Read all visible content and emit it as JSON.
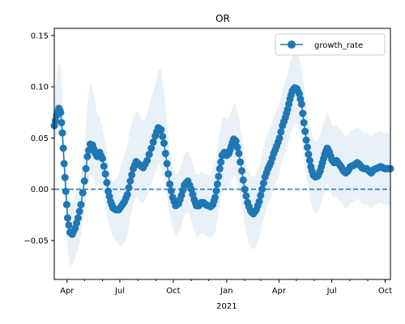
{
  "chart_data": {
    "type": "line",
    "title": "OR",
    "xlabel": "",
    "ylabel": "",
    "x_start": "2020-03-10",
    "x_end": "2021-10-10",
    "ylim": [
      -0.088,
      0.157
    ],
    "yticks": [
      -0.05,
      0.0,
      0.05,
      0.1,
      0.15
    ],
    "ytick_labels": [
      "−0.05",
      "0.00",
      "0.05",
      "0.10",
      "0.15"
    ],
    "xticks": [
      {
        "date": "2020-04-01",
        "label": "Apr",
        "sublabel": ""
      },
      {
        "date": "2020-07-01",
        "label": "Jul",
        "sublabel": ""
      },
      {
        "date": "2020-10-01",
        "label": "Oct",
        "sublabel": ""
      },
      {
        "date": "2021-01-01",
        "label": "Jan",
        "sublabel": "2021"
      },
      {
        "date": "2021-04-01",
        "label": "Apr",
        "sublabel": ""
      },
      {
        "date": "2021-07-01",
        "label": "Jul",
        "sublabel": ""
      },
      {
        "date": "2021-10-01",
        "label": "Oct",
        "sublabel": ""
      }
    ],
    "minor_ticks": [
      "2020-05-01",
      "2020-06-01",
      "2020-08-01",
      "2020-09-01",
      "2020-11-01",
      "2020-12-01",
      "2021-02-01",
      "2021-03-01",
      "2021-05-01",
      "2021-06-01",
      "2021-08-01",
      "2021-09-01"
    ],
    "series": [
      {
        "name": "growth_rate",
        "color": "#1f77b4",
        "marker": "circle",
        "x": [
          "2020-03-10",
          "2020-03-14",
          "2020-03-18",
          "2020-03-21",
          "2020-03-24",
          "2020-03-27",
          "2020-03-30",
          "2020-04-02",
          "2020-04-06",
          "2020-04-10",
          "2020-04-15",
          "2020-04-20",
          "2020-04-25",
          "2020-05-01",
          "2020-05-06",
          "2020-05-11",
          "2020-05-15",
          "2020-05-19",
          "2020-05-23",
          "2020-05-27",
          "2020-06-01",
          "2020-06-06",
          "2020-06-11",
          "2020-06-15",
          "2020-06-19",
          "2020-06-24",
          "2020-06-29",
          "2020-07-04",
          "2020-07-09",
          "2020-07-14",
          "2020-07-19",
          "2020-07-24",
          "2020-07-29",
          "2020-08-03",
          "2020-08-10",
          "2020-08-17",
          "2020-08-24",
          "2020-08-31",
          "2020-09-05",
          "2020-09-10",
          "2020-09-15",
          "2020-09-20",
          "2020-09-25",
          "2020-09-30",
          "2020-10-05",
          "2020-10-10",
          "2020-10-15",
          "2020-10-20",
          "2020-10-26",
          "2020-11-01",
          "2020-11-06",
          "2020-11-10",
          "2020-11-14",
          "2020-11-18",
          "2020-11-22",
          "2020-11-26",
          "2020-11-30",
          "2020-12-04",
          "2020-12-08",
          "2020-12-12",
          "2020-12-16",
          "2020-12-20",
          "2020-12-24",
          "2020-12-28",
          "2021-01-01",
          "2021-01-05",
          "2021-01-09",
          "2021-01-13",
          "2021-01-17",
          "2021-01-22",
          "2021-01-27",
          "2021-02-01",
          "2021-02-06",
          "2021-02-11",
          "2021-02-16",
          "2021-02-21",
          "2021-02-26",
          "2021-03-03",
          "2021-03-08",
          "2021-03-13",
          "2021-03-18",
          "2021-03-23",
          "2021-03-28",
          "2021-04-02",
          "2021-04-07",
          "2021-04-12",
          "2021-04-16",
          "2021-04-20",
          "2021-04-24",
          "2021-04-28",
          "2021-05-02",
          "2021-05-06",
          "2021-05-10",
          "2021-05-14",
          "2021-05-18",
          "2021-05-22",
          "2021-05-26",
          "2021-05-30",
          "2021-06-03",
          "2021-06-07",
          "2021-06-11",
          "2021-06-15",
          "2021-06-19",
          "2021-06-23",
          "2021-06-27",
          "2021-07-01",
          "2021-07-05",
          "2021-07-09",
          "2021-07-13",
          "2021-07-17",
          "2021-07-21",
          "2021-07-25",
          "2021-07-29",
          "2021-08-02",
          "2021-08-06",
          "2021-08-10",
          "2021-08-14",
          "2021-08-18",
          "2021-08-22",
          "2021-08-26",
          "2021-08-30",
          "2021-09-03",
          "2021-09-07",
          "2021-09-11",
          "2021-09-15",
          "2021-09-19",
          "2021-09-23",
          "2021-09-27",
          "2021-10-01",
          "2021-10-05",
          "2021-10-10"
        ],
        "y": [
          0.062,
          0.072,
          0.079,
          0.075,
          0.055,
          0.025,
          -0.002,
          -0.028,
          -0.042,
          -0.044,
          -0.038,
          -0.028,
          -0.015,
          0.008,
          0.032,
          0.044,
          0.043,
          0.036,
          0.032,
          0.036,
          0.03,
          0.015,
          -0.002,
          -0.012,
          -0.018,
          -0.02,
          -0.02,
          -0.016,
          -0.012,
          -0.005,
          0.008,
          0.02,
          0.027,
          0.024,
          0.021,
          0.028,
          0.04,
          0.052,
          0.06,
          0.058,
          0.045,
          0.025,
          0.005,
          -0.008,
          -0.016,
          -0.014,
          -0.006,
          0.004,
          0.008,
          0.0,
          -0.01,
          -0.016,
          -0.016,
          -0.013,
          -0.013,
          -0.015,
          -0.016,
          -0.017,
          -0.015,
          -0.008,
          0.005,
          0.02,
          0.033,
          0.036,
          0.033,
          0.035,
          0.042,
          0.049,
          0.047,
          0.035,
          0.018,
          0.0,
          -0.013,
          -0.021,
          -0.024,
          -0.02,
          -0.012,
          0.0,
          0.012,
          0.02,
          0.026,
          0.035,
          0.042,
          0.05,
          0.062,
          0.07,
          0.078,
          0.088,
          0.096,
          0.099,
          0.098,
          0.093,
          0.083,
          0.065,
          0.048,
          0.034,
          0.022,
          0.014,
          0.012,
          0.013,
          0.018,
          0.026,
          0.034,
          0.04,
          0.036,
          0.029,
          0.026,
          0.028,
          0.025,
          0.022,
          0.018,
          0.016,
          0.018,
          0.022,
          0.023,
          0.024,
          0.026,
          0.024,
          0.021,
          0.02,
          0.02,
          0.018,
          0.016,
          0.019,
          0.02,
          0.021,
          0.022,
          0.021,
          0.02,
          0.02,
          0.02
        ]
      }
    ],
    "band": {
      "color": "#1f77b4",
      "opacity": 0.1,
      "upper_offsets": [
        0.02,
        0.04,
        0.045,
        0.045,
        0.035,
        0.025,
        0.025,
        0.03,
        0.03,
        0.03,
        0.03,
        0.03,
        0.03,
        0.035,
        0.05,
        0.06,
        0.055,
        0.05,
        0.04,
        0.035,
        0.03,
        0.03,
        0.03,
        0.025,
        0.025,
        0.03,
        0.035,
        0.04,
        0.045,
        0.05,
        0.05,
        0.05,
        0.05,
        0.05,
        0.045,
        0.045,
        0.05,
        0.05,
        0.055,
        0.06,
        0.05,
        0.04,
        0.035,
        0.03,
        0.03,
        0.03,
        0.03,
        0.03,
        0.03,
        0.03,
        0.03,
        0.03,
        0.03,
        0.03,
        0.03,
        0.03,
        0.03,
        0.03,
        0.035,
        0.035,
        0.035,
        0.035,
        0.035,
        0.035,
        0.035,
        0.035,
        0.035,
        0.035,
        0.035,
        0.035,
        0.035,
        0.035,
        0.035,
        0.035,
        0.035,
        0.035,
        0.035,
        0.035,
        0.035,
        0.035,
        0.035,
        0.035,
        0.035,
        0.035,
        0.035,
        0.035,
        0.035,
        0.035,
        0.035,
        0.035,
        0.035,
        0.035,
        0.035,
        0.035,
        0.035,
        0.035,
        0.035,
        0.035,
        0.035,
        0.035,
        0.035,
        0.035,
        0.035,
        0.035,
        0.035,
        0.035,
        0.035,
        0.035,
        0.035,
        0.035,
        0.035,
        0.035,
        0.035,
        0.035,
        0.035,
        0.035,
        0.035,
        0.035,
        0.035,
        0.035,
        0.035,
        0.035,
        0.035,
        0.035,
        0.035,
        0.035,
        0.035,
        0.035,
        0.035,
        0.035,
        0.035
      ],
      "lower_offsets": [
        0.015,
        0.02,
        0.025,
        0.025,
        0.025,
        0.025,
        0.03,
        0.03,
        0.032,
        0.03,
        0.03,
        0.03,
        0.03,
        0.03,
        0.03,
        0.03,
        0.03,
        0.03,
        0.03,
        0.03,
        0.03,
        0.03,
        0.03,
        0.028,
        0.028,
        0.03,
        0.035,
        0.04,
        0.04,
        0.04,
        0.035,
        0.035,
        0.035,
        0.035,
        0.035,
        0.035,
        0.035,
        0.035,
        0.035,
        0.035,
        0.035,
        0.03,
        0.03,
        0.03,
        0.03,
        0.03,
        0.03,
        0.03,
        0.03,
        0.03,
        0.03,
        0.03,
        0.03,
        0.03,
        0.03,
        0.03,
        0.03,
        0.03,
        0.03,
        0.035,
        0.035,
        0.035,
        0.035,
        0.035,
        0.035,
        0.035,
        0.035,
        0.035,
        0.035,
        0.035,
        0.035,
        0.035,
        0.035,
        0.035,
        0.035,
        0.035,
        0.035,
        0.035,
        0.035,
        0.035,
        0.035,
        0.035,
        0.035,
        0.035,
        0.035,
        0.035,
        0.035,
        0.035,
        0.035,
        0.035,
        0.035,
        0.035,
        0.035,
        0.035,
        0.035,
        0.035,
        0.035,
        0.035,
        0.035,
        0.035,
        0.035,
        0.035,
        0.035,
        0.035,
        0.035,
        0.035,
        0.035,
        0.035,
        0.035,
        0.035,
        0.035,
        0.035,
        0.035,
        0.035,
        0.035,
        0.035,
        0.035,
        0.035,
        0.035,
        0.035,
        0.035,
        0.035,
        0.035,
        0.035,
        0.035,
        0.035,
        0.035,
        0.035,
        0.035,
        0.035,
        0.035,
        0.035,
        0.035,
        0.035,
        0.045
      ]
    },
    "reference_line": {
      "y": 0.0,
      "style": "dashed",
      "color": "#1f77b4"
    },
    "legend": {
      "placement": "top-right",
      "entries": [
        "growth_rate"
      ]
    },
    "grid": false
  }
}
